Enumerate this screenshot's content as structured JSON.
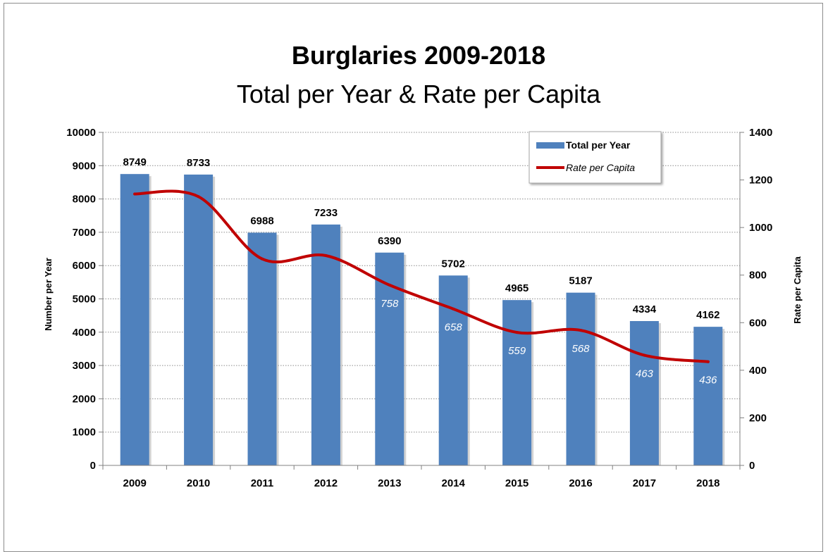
{
  "chart_data": {
    "type": "bar",
    "title": "Burglaries 2009-2018",
    "subtitle": "Total per Year & Rate per Capita",
    "categories": [
      "2009",
      "2010",
      "2011",
      "2012",
      "2013",
      "2014",
      "2015",
      "2016",
      "2017",
      "2018"
    ],
    "series": [
      {
        "name": "Total per Year",
        "type": "bar",
        "axis": "left",
        "color": "#4f81bd",
        "values": [
          8749,
          8733,
          6988,
          7233,
          6390,
          5702,
          4965,
          5187,
          4334,
          4162
        ],
        "data_labels": [
          "8749",
          "8733",
          "6988",
          "7233",
          "6390",
          "5702",
          "4965",
          "5187",
          "4334",
          "4162"
        ]
      },
      {
        "name": "Rate per Capita",
        "type": "line",
        "axis": "right",
        "color": "#c00000",
        "smooth": true,
        "values": [
          1141,
          1130,
          868,
          882,
          758,
          658,
          559,
          568,
          463,
          436
        ],
        "data_labels": [
          "",
          "",
          "",
          "",
          "758",
          "658",
          "559",
          "568",
          "463",
          "436"
        ]
      }
    ],
    "ylabel": "Number per Year",
    "ylabel_right": "Rate per Capita",
    "ylim": [
      0,
      10000
    ],
    "ylim_right": [
      0,
      1400
    ],
    "yticks": [
      "0",
      "1000",
      "2000",
      "3000",
      "4000",
      "5000",
      "6000",
      "7000",
      "8000",
      "9000",
      "10000"
    ],
    "yticks_right": [
      "0",
      "200",
      "400",
      "600",
      "800",
      "1000",
      "1200",
      "1400"
    ],
    "grid": true,
    "legend_position": "top-right"
  }
}
